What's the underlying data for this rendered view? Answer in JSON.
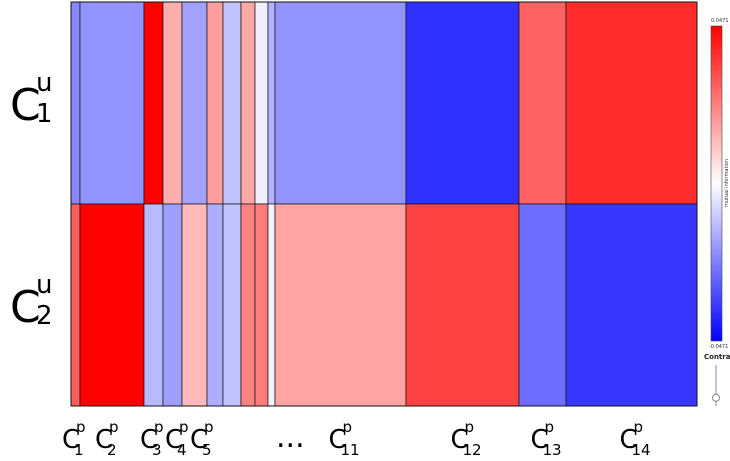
{
  "chart_data": {
    "type": "heatmap",
    "rows": [
      {
        "base": "C",
        "sup": "u",
        "sub": "1"
      },
      {
        "base": "C",
        "sup": "u",
        "sub": "2"
      }
    ],
    "columns": [
      {
        "base": "C",
        "sup": "p",
        "sub": "1",
        "labeled": true
      },
      {
        "base": "C",
        "sup": "p",
        "sub": "2",
        "labeled": true
      },
      {
        "base": "C",
        "sup": "p",
        "sub": "3",
        "labeled": true
      },
      {
        "base": "C",
        "sup": "p",
        "sub": "4",
        "labeled": true
      },
      {
        "base": "C",
        "sup": "p",
        "sub": "5",
        "labeled": true
      },
      {
        "labeled": false
      },
      {
        "labeled": false
      },
      {
        "labeled": false
      },
      {
        "labeled": false
      },
      {
        "labeled": false
      },
      {
        "base": "C",
        "sup": "p",
        "sub": "11",
        "labeled": true
      },
      {
        "base": "C",
        "sup": "p",
        "sub": "12",
        "labeled": true
      },
      {
        "base": "C",
        "sup": "p",
        "sub": "13",
        "labeled": true
      },
      {
        "base": "C",
        "sup": "p",
        "sub": "14",
        "labeled": true
      }
    ],
    "column_weights": [
      9,
      64,
      19,
      19,
      25,
      16,
      18,
      14,
      13,
      7,
      131,
      113,
      47,
      131
    ],
    "values": [
      [
        -0.022,
        -0.02,
        0.047,
        0.015,
        -0.017,
        0.018,
        -0.011,
        0.016,
        -0.003,
        -0.014,
        -0.02,
        -0.038,
        0.029,
        0.039
      ],
      [
        0.03,
        0.047,
        -0.013,
        -0.018,
        0.013,
        -0.015,
        -0.011,
        0.023,
        0.024,
        -0.002,
        0.017,
        0.035,
        -0.027,
        -0.037
      ]
    ],
    "ellipsis": "...",
    "colorbar": {
      "title": "mutual information",
      "max_label": "0.0471",
      "min_label": "-0.0471",
      "vmin": -0.0471,
      "vmax": 0.0471,
      "colors": [
        "#0000ff",
        "#ffffff",
        "#ff0000"
      ]
    },
    "contrast_label": "Contrast",
    "contrast_level": 0.2
  }
}
